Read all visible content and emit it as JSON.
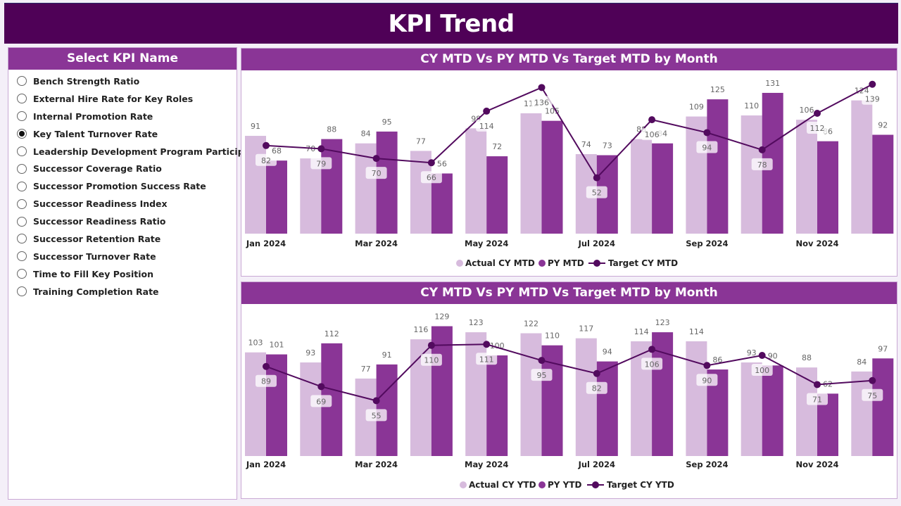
{
  "header": {
    "title": "KPI Trend"
  },
  "slicer": {
    "title": "Select KPI Name",
    "selected": "Key Talent Turnover Rate",
    "items": [
      "Bench Strength Ratio",
      "External Hire Rate for Key Roles",
      "Internal Promotion Rate",
      "Key Talent Turnover Rate",
      "Leadership Development Program Participa...",
      "Successor Coverage Ratio",
      "Successor Promotion Success Rate",
      "Successor Readiness Index",
      "Successor Readiness Ratio",
      "Successor Retention Rate",
      "Successor Turnover Rate",
      "Time to Fill Key Position",
      "Training Completion Rate"
    ]
  },
  "colors": {
    "header": "#4f0157",
    "panel_title": "#8a3596",
    "actual": "#d7bbdd",
    "py": "#8a3596",
    "target": "#520a5e"
  },
  "chart_data": [
    {
      "type": "bar",
      "title": "CY MTD Vs PY MTD Vs Target MTD by Month",
      "categories": [
        "Jan 2024",
        "Feb 2024",
        "Mar 2024",
        "Apr 2024",
        "May 2024",
        "Jun 2024",
        "Jul 2024",
        "Aug 2024",
        "Sep 2024",
        "Oct 2024",
        "Nov 2024",
        "Dec 2024"
      ],
      "tick_labels": [
        "Jan 2024",
        "Mar 2024",
        "May 2024",
        "Jul 2024",
        "Sep 2024",
        "Nov 2024"
      ],
      "series": [
        {
          "name": "Actual CY MTD",
          "kind": "bar",
          "values": [
            91,
            70,
            84,
            77,
            98,
            112,
            74,
            88,
            109,
            110,
            106,
            124
          ]
        },
        {
          "name": "PY MTD",
          "kind": "bar",
          "values": [
            68,
            88,
            95,
            56,
            72,
            105,
            73,
            84,
            125,
            131,
            86,
            92
          ]
        },
        {
          "name": "Target CY MTD",
          "kind": "line",
          "values": [
            82,
            79,
            70,
            66,
            114,
            136,
            52,
            106,
            94,
            78,
            112,
            139
          ]
        }
      ],
      "legend": "bottom-center",
      "grid": false
    },
    {
      "type": "bar",
      "title": "CY MTD Vs PY MTD Vs Target MTD by Month",
      "categories": [
        "Jan 2024",
        "Feb 2024",
        "Mar 2024",
        "Apr 2024",
        "May 2024",
        "Jun 2024",
        "Jul 2024",
        "Aug 2024",
        "Sep 2024",
        "Oct 2024",
        "Nov 2024",
        "Dec 2024"
      ],
      "tick_labels": [
        "Jan 2024",
        "Mar 2024",
        "May 2024",
        "Jul 2024",
        "Sep 2024",
        "Nov 2024"
      ],
      "series": [
        {
          "name": "Actual CY YTD",
          "kind": "bar",
          "values": [
            103,
            93,
            77,
            116,
            123,
            122,
            117,
            114,
            114,
            93,
            88,
            84
          ]
        },
        {
          "name": "PY YTD",
          "kind": "bar",
          "values": [
            101,
            112,
            91,
            129,
            100,
            110,
            94,
            123,
            86,
            90,
            62,
            97
          ]
        },
        {
          "name": "Target CY YTD",
          "kind": "line",
          "values": [
            89,
            69,
            55,
            110,
            111,
            95,
            82,
            106,
            90,
            100,
            71,
            75
          ]
        }
      ],
      "legend": "bottom-center",
      "grid": false
    }
  ]
}
